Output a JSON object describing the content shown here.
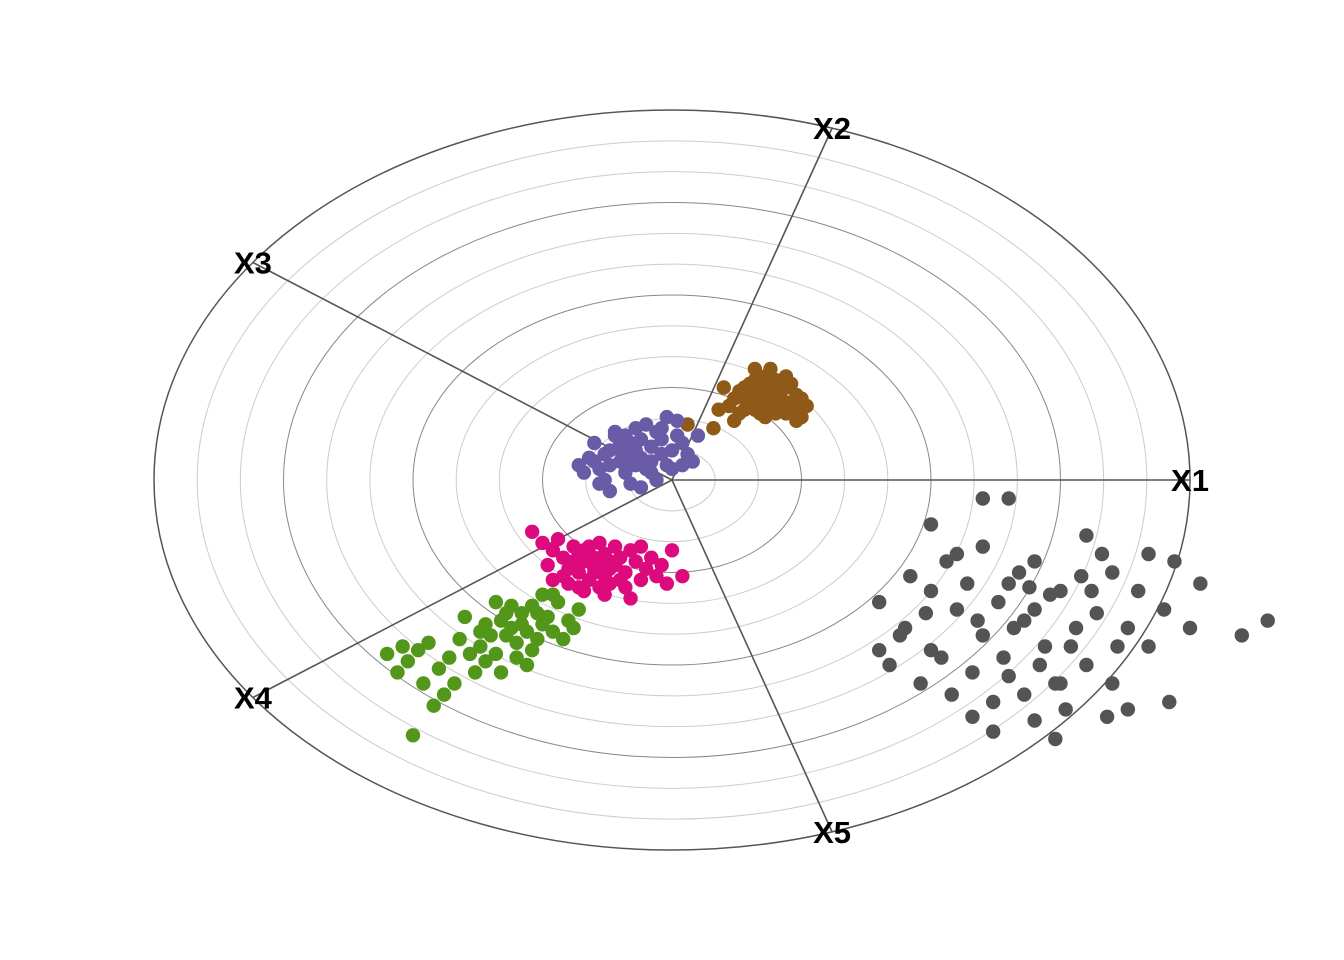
{
  "chart_data": {
    "type": "scatter",
    "title": "",
    "xlabel": "",
    "ylabel": "",
    "grid": true,
    "legend": "none",
    "r_range": [
      0,
      1
    ],
    "rings": 12,
    "axes": [
      {
        "label": "X1",
        "angle_deg": 0
      },
      {
        "label": "X2",
        "angle_deg": 72
      },
      {
        "label": "X3",
        "angle_deg": 144
      },
      {
        "label": "X4",
        "angle_deg": 216
      },
      {
        "label": "X5",
        "angle_deg": 288
      }
    ],
    "colors": {
      "outer_ring": "#555555",
      "major_ring": "#888888",
      "minor_ring": "#cccccc",
      "axis_line": "#555555"
    },
    "series": [
      {
        "color": "#d95f02",
        "display_color": "#8f5a17",
        "points": [
          [
            0.12,
            0.22
          ],
          [
            0.14,
            0.25
          ],
          [
            0.15,
            0.21
          ],
          [
            0.16,
            0.19
          ],
          [
            0.17,
            0.23
          ],
          [
            0.18,
            0.24
          ],
          [
            0.19,
            0.2
          ],
          [
            0.2,
            0.18
          ],
          [
            0.21,
            0.22
          ],
          [
            0.22,
            0.25
          ],
          [
            0.18,
            0.28
          ],
          [
            0.16,
            0.27
          ],
          [
            0.14,
            0.19
          ],
          [
            0.13,
            0.24
          ],
          [
            0.2,
            0.27
          ],
          [
            0.22,
            0.21
          ],
          [
            0.24,
            0.19
          ],
          [
            0.25,
            0.22
          ],
          [
            0.23,
            0.26
          ],
          [
            0.19,
            0.24
          ],
          [
            0.17,
            0.2
          ],
          [
            0.15,
            0.26
          ],
          [
            0.21,
            0.19
          ],
          [
            0.11,
            0.2
          ],
          [
            0.16,
            0.3
          ],
          [
            0.24,
            0.23
          ],
          [
            0.26,
            0.2
          ],
          [
            0.18,
            0.17
          ],
          [
            0.2,
            0.23
          ],
          [
            0.14,
            0.22
          ],
          [
            0.22,
            0.28
          ],
          [
            0.19,
            0.26
          ],
          [
            0.21,
            0.24
          ],
          [
            0.17,
            0.25
          ],
          [
            0.15,
            0.23
          ],
          [
            0.23,
            0.2
          ],
          [
            0.25,
            0.17
          ],
          [
            0.13,
            0.18
          ],
          [
            0.09,
            0.19
          ],
          [
            0.08,
            0.14
          ],
          [
            0.17,
            0.18
          ],
          [
            0.2,
            0.2
          ],
          [
            0.18,
            0.22
          ],
          [
            0.16,
            0.22
          ],
          [
            0.22,
            0.18
          ],
          [
            0.24,
            0.16
          ],
          [
            0.19,
            0.3
          ],
          [
            0.03,
            0.15
          ],
          [
            0.1,
            0.25
          ],
          [
            0.12,
            0.16
          ]
        ]
      },
      {
        "color": "#7570b3",
        "display_color": "#6a5ba7",
        "points": [
          [
            -0.1,
            0.05
          ],
          [
            -0.12,
            0.08
          ],
          [
            -0.08,
            0.1
          ],
          [
            -0.06,
            0.06
          ],
          [
            -0.04,
            0.09
          ],
          [
            -0.02,
            0.11
          ],
          [
            0.0,
            0.08
          ],
          [
            -0.14,
            0.03
          ],
          [
            -0.16,
            0.06
          ],
          [
            -0.11,
            0.12
          ],
          [
            -0.09,
            0.02
          ],
          [
            -0.05,
            0.03
          ],
          [
            -0.03,
            0.13
          ],
          [
            0.01,
            0.12
          ],
          [
            0.03,
            0.07
          ],
          [
            -0.07,
            0.14
          ],
          [
            -0.13,
            0.0
          ],
          [
            -0.15,
            0.1
          ],
          [
            -0.01,
            0.04
          ],
          [
            0.02,
            0.1
          ],
          [
            -0.08,
            -0.01
          ],
          [
            -0.1,
            0.08
          ],
          [
            -0.06,
            0.11
          ],
          [
            -0.04,
            0.05
          ],
          [
            -0.12,
            0.04
          ],
          [
            -0.09,
            0.07
          ],
          [
            -0.07,
            0.04
          ],
          [
            -0.02,
            0.07
          ],
          [
            0.0,
            0.03
          ],
          [
            -0.05,
            0.15
          ],
          [
            0.01,
            0.16
          ],
          [
            -0.11,
            0.13
          ],
          [
            -0.17,
            0.02
          ],
          [
            -0.14,
            -0.01
          ],
          [
            -0.06,
            -0.02
          ],
          [
            -0.03,
            0.0
          ],
          [
            0.04,
            0.05
          ],
          [
            0.05,
            0.12
          ],
          [
            -0.01,
            0.17
          ],
          [
            -0.09,
            0.12
          ],
          [
            -0.13,
            0.07
          ],
          [
            -0.08,
            0.05
          ],
          [
            -0.04,
            0.02
          ],
          [
            -0.1,
            0.1
          ],
          [
            -0.12,
            -0.03
          ],
          [
            -0.07,
            0.08
          ],
          [
            0.02,
            0.04
          ],
          [
            -0.15,
            0.05
          ],
          [
            -0.02,
            0.14
          ],
          [
            -0.18,
            0.04
          ]
        ]
      },
      {
        "color": "#e7298a",
        "display_color": "#dd0a7e",
        "points": [
          [
            -0.17,
            -0.22
          ],
          [
            -0.15,
            -0.24
          ],
          [
            -0.13,
            -0.2
          ],
          [
            -0.11,
            -0.23
          ],
          [
            -0.19,
            -0.18
          ],
          [
            -0.21,
            -0.21
          ],
          [
            -0.14,
            -0.17
          ],
          [
            -0.09,
            -0.25
          ],
          [
            -0.12,
            -0.28
          ],
          [
            -0.16,
            -0.27
          ],
          [
            -0.08,
            -0.19
          ],
          [
            -0.1,
            -0.21
          ],
          [
            -0.18,
            -0.25
          ],
          [
            -0.2,
            -0.24
          ],
          [
            -0.06,
            -0.27
          ],
          [
            -0.23,
            -0.19
          ],
          [
            -0.25,
            -0.17
          ],
          [
            -0.12,
            -0.24
          ],
          [
            -0.07,
            -0.22
          ],
          [
            -0.14,
            -0.29
          ],
          [
            -0.05,
            -0.24
          ],
          [
            -0.03,
            -0.26
          ],
          [
            -0.01,
            -0.28
          ],
          [
            -0.15,
            -0.21
          ],
          [
            -0.22,
            -0.16
          ],
          [
            -0.27,
            -0.14
          ],
          [
            -0.13,
            -0.31
          ],
          [
            -0.09,
            -0.29
          ],
          [
            -0.18,
            -0.2
          ],
          [
            -0.16,
            -0.18
          ],
          [
            0.0,
            -0.19
          ],
          [
            -0.11,
            -0.18
          ],
          [
            -0.04,
            -0.21
          ],
          [
            -0.2,
            -0.28
          ],
          [
            -0.24,
            -0.23
          ],
          [
            -0.08,
            -0.32
          ],
          [
            -0.06,
            -0.18
          ],
          [
            -0.17,
            -0.3
          ],
          [
            -0.13,
            -0.26
          ],
          [
            -0.1,
            -0.27
          ],
          [
            -0.02,
            -0.23
          ],
          [
            -0.19,
            -0.22
          ],
          [
            -0.15,
            -0.25
          ],
          [
            -0.12,
            -0.22
          ],
          [
            -0.21,
            -0.26
          ],
          [
            0.02,
            -0.26
          ],
          [
            -0.14,
            -0.23
          ],
          [
            -0.18,
            -0.29
          ],
          [
            -0.23,
            -0.27
          ],
          [
            -0.17,
            -0.19
          ]
        ]
      },
      {
        "color": "#66a61e",
        "display_color": "#52961a",
        "points": [
          [
            -0.35,
            -0.42
          ],
          [
            -0.33,
            -0.38
          ],
          [
            -0.37,
            -0.45
          ],
          [
            -0.31,
            -0.4
          ],
          [
            -0.29,
            -0.36
          ],
          [
            -0.27,
            -0.34
          ],
          [
            -0.25,
            -0.39
          ],
          [
            -0.39,
            -0.47
          ],
          [
            -0.41,
            -0.43
          ],
          [
            -0.43,
            -0.48
          ],
          [
            -0.45,
            -0.51
          ],
          [
            -0.47,
            -0.44
          ],
          [
            -0.49,
            -0.46
          ],
          [
            -0.51,
            -0.49
          ],
          [
            -0.28,
            -0.41
          ],
          [
            -0.3,
            -0.44
          ],
          [
            -0.32,
            -0.36
          ],
          [
            -0.34,
            -0.33
          ],
          [
            -0.36,
            -0.39
          ],
          [
            -0.26,
            -0.43
          ],
          [
            -0.24,
            -0.37
          ],
          [
            -0.22,
            -0.33
          ],
          [
            -0.2,
            -0.38
          ],
          [
            -0.23,
            -0.31
          ],
          [
            -0.38,
            -0.52
          ],
          [
            -0.42,
            -0.55
          ],
          [
            -0.44,
            -0.58
          ],
          [
            -0.46,
            -0.61
          ],
          [
            -0.4,
            -0.37
          ],
          [
            -0.3,
            -0.48
          ],
          [
            -0.28,
            -0.5
          ],
          [
            -0.34,
            -0.47
          ],
          [
            -0.31,
            -0.34
          ],
          [
            -0.27,
            -0.46
          ],
          [
            -0.21,
            -0.43
          ],
          [
            -0.19,
            -0.4
          ],
          [
            -0.33,
            -0.52
          ],
          [
            -0.36,
            -0.49
          ],
          [
            -0.25,
            -0.31
          ],
          [
            -0.29,
            -0.39
          ],
          [
            -0.32,
            -0.42
          ],
          [
            -0.26,
            -0.36
          ],
          [
            -0.23,
            -0.41
          ],
          [
            -0.18,
            -0.35
          ],
          [
            -0.48,
            -0.55
          ],
          [
            -0.52,
            -0.45
          ],
          [
            -0.55,
            -0.47
          ],
          [
            -0.53,
            -0.52
          ],
          [
            -0.5,
            -0.69
          ],
          [
            -0.37,
            -0.41
          ]
        ]
      },
      {
        "color": "#666666",
        "display_color": "#545454",
        "points": [
          [
            0.5,
            -0.12
          ],
          [
            0.55,
            -0.2
          ],
          [
            0.6,
            -0.18
          ],
          [
            0.65,
            -0.28
          ],
          [
            0.7,
            -0.22
          ],
          [
            0.75,
            -0.3
          ],
          [
            0.8,
            -0.15
          ],
          [
            0.55,
            -0.35
          ],
          [
            0.6,
            -0.42
          ],
          [
            0.68,
            -0.38
          ],
          [
            0.72,
            -0.45
          ],
          [
            0.78,
            -0.4
          ],
          [
            0.85,
            -0.25
          ],
          [
            0.9,
            -0.3
          ],
          [
            0.95,
            -0.35
          ],
          [
            1.0,
            -0.4
          ],
          [
            0.5,
            -0.3
          ],
          [
            0.45,
            -0.4
          ],
          [
            0.4,
            -0.33
          ],
          [
            0.42,
            -0.5
          ],
          [
            0.48,
            -0.55
          ],
          [
            0.52,
            -0.48
          ],
          [
            0.58,
            -0.52
          ],
          [
            0.62,
            -0.6
          ],
          [
            0.68,
            -0.58
          ],
          [
            0.74,
            -0.55
          ],
          [
            0.8,
            -0.5
          ],
          [
            0.86,
            -0.45
          ],
          [
            0.7,
            -0.65
          ],
          [
            0.76,
            -0.62
          ],
          [
            0.62,
            -0.68
          ],
          [
            0.58,
            -0.64
          ],
          [
            0.66,
            -0.4
          ],
          [
            0.64,
            -0.48
          ],
          [
            0.7,
            -0.35
          ],
          [
            0.73,
            -0.31
          ],
          [
            0.77,
            -0.45
          ],
          [
            0.82,
            -0.36
          ],
          [
            0.88,
            -0.4
          ],
          [
            0.92,
            -0.45
          ],
          [
            0.96,
            -0.6
          ],
          [
            0.74,
            -0.7
          ],
          [
            0.84,
            -0.64
          ],
          [
            0.67,
            -0.25
          ],
          [
            0.57,
            -0.28
          ],
          [
            0.53,
            -0.22
          ],
          [
            0.46,
            -0.26
          ],
          [
            0.44,
            -0.42
          ],
          [
            0.5,
            -0.46
          ],
          [
            0.63,
            -0.33
          ],
          [
            0.69,
            -0.29
          ],
          [
            0.79,
            -0.26
          ],
          [
            0.83,
            -0.2
          ],
          [
            0.71,
            -0.5
          ],
          [
            0.65,
            -0.53
          ],
          [
            0.59,
            -0.38
          ],
          [
            0.49,
            -0.36
          ],
          [
            0.4,
            -0.46
          ],
          [
            0.85,
            -0.55
          ],
          [
            0.92,
            -0.2
          ],
          [
            0.97,
            -0.22
          ],
          [
            1.02,
            -0.28
          ],
          [
            1.1,
            -0.42
          ],
          [
            1.15,
            -0.38
          ],
          [
            0.6,
            -0.05
          ],
          [
            0.65,
            -0.05
          ],
          [
            0.75,
            -0.55
          ],
          [
            0.88,
            -0.62
          ],
          [
            0.54,
            -0.58
          ],
          [
            0.81,
            -0.3
          ]
        ]
      }
    ]
  }
}
